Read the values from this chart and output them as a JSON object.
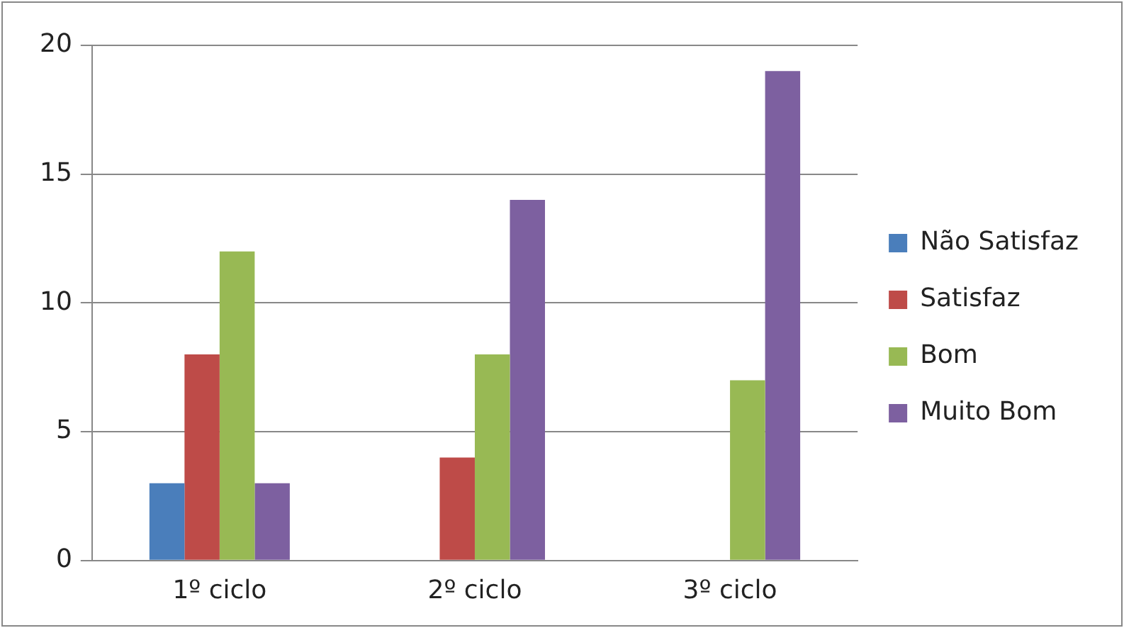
{
  "chart_data": {
    "type": "bar",
    "categories": [
      "1º ciclo",
      "2º ciclo",
      "3º ciclo"
    ],
    "series": [
      {
        "name": "Não Satisfaz",
        "color": "#4a7ebb",
        "values": [
          3,
          0,
          0
        ]
      },
      {
        "name": "Satisfaz",
        "color": "#be4b48",
        "values": [
          8,
          4,
          0
        ]
      },
      {
        "name": "Bom",
        "color": "#98b954",
        "values": [
          12,
          8,
          7
        ]
      },
      {
        "name": "Muito Bom",
        "color": "#7d60a0",
        "values": [
          3,
          14,
          19
        ]
      }
    ],
    "ylim": [
      0,
      20
    ],
    "yticks": [
      0,
      5,
      10,
      15,
      20
    ],
    "grid": "y",
    "legend": "right"
  }
}
